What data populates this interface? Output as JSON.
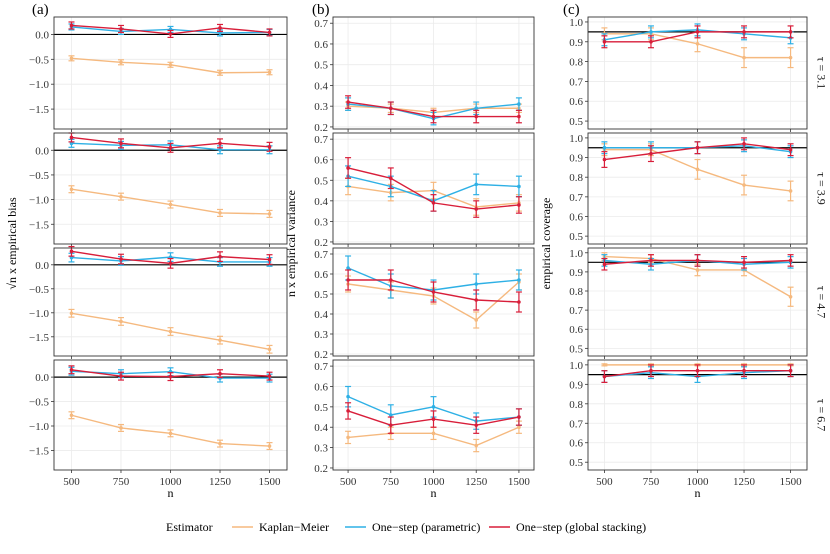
{
  "colors": {
    "km": "#F5B97F",
    "param": "#2EB0E5",
    "stack": "#D81E3A",
    "reference_line": "#000000",
    "panel_border": "#333333",
    "grid": "#EBEBEB",
    "strip_text": "#1A1A1A"
  },
  "column_letters": [
    "(a)",
    "(b)",
    "(c)"
  ],
  "row_strips": [
    "τ = 3.1",
    "τ = 3.9",
    "τ = 4.7",
    "τ = 6.7"
  ],
  "legend": {
    "title": "Estimator",
    "items": [
      {
        "key": "km",
        "label": "Kaplan−Meier"
      },
      {
        "key": "param",
        "label": "One−step (parametric)"
      },
      {
        "key": "stack",
        "label": "One−step (global stacking)"
      }
    ]
  },
  "chart_data": [
    {
      "type": "line",
      "column": "(a)",
      "ylabel": "√n x empirical bias",
      "xlabel": "n",
      "x": [
        500,
        750,
        1000,
        1250,
        1500
      ],
      "ylim": [
        -1.9,
        0.35
      ],
      "yticks": [
        0.0,
        -0.5,
        -1.0,
        -1.5
      ],
      "ytick_labels": [
        "0.0",
        "−0.5",
        "−1.0",
        "−1.5"
      ],
      "reference_line": 0,
      "panels": [
        {
          "tau": "τ = 3.1",
          "series": [
            {
              "name": "Kaplan−Meier",
              "key": "km",
              "values": [
                -0.48,
                -0.56,
                -0.61,
                -0.77,
                -0.76
              ],
              "err": [
                0.05,
                0.05,
                0.05,
                0.05,
                0.05
              ]
            },
            {
              "name": "One−step (parametric)",
              "key": "param",
              "values": [
                0.15,
                0.06,
                0.1,
                0.03,
                0.04
              ],
              "err": [
                0.06,
                0.06,
                0.06,
                0.06,
                0.06
              ]
            },
            {
              "name": "One−step (global stacking)",
              "key": "stack",
              "values": [
                0.18,
                0.11,
                0.01,
                0.13,
                0.04
              ],
              "err": [
                0.07,
                0.07,
                0.07,
                0.07,
                0.07
              ]
            }
          ]
        },
        {
          "tau": "τ = 3.9",
          "series": [
            {
              "name": "Kaplan−Meier",
              "key": "km",
              "values": [
                -0.79,
                -0.94,
                -1.1,
                -1.27,
                -1.29
              ],
              "err": [
                0.07,
                0.07,
                0.07,
                0.07,
                0.07
              ]
            },
            {
              "name": "One−step (parametric)",
              "key": "param",
              "values": [
                0.14,
                0.1,
                0.11,
                0.01,
                0.01
              ],
              "err": [
                0.08,
                0.08,
                0.08,
                0.08,
                0.08
              ]
            },
            {
              "name": "One−step (global stacking)",
              "key": "stack",
              "values": [
                0.26,
                0.14,
                0.05,
                0.14,
                0.07
              ],
              "err": [
                0.09,
                0.09,
                0.09,
                0.09,
                0.09
              ]
            }
          ]
        },
        {
          "tau": "τ = 4.7",
          "series": [
            {
              "name": "Kaplan−Meier",
              "key": "km",
              "values": [
                -1.01,
                -1.18,
                -1.39,
                -1.57,
                -1.76
              ],
              "err": [
                0.08,
                0.08,
                0.08,
                0.08,
                0.08
              ]
            },
            {
              "name": "One−step (parametric)",
              "key": "param",
              "values": [
                0.15,
                0.08,
                0.16,
                0.06,
                0.06
              ],
              "err": [
                0.09,
                0.09,
                0.09,
                0.09,
                0.09
              ]
            },
            {
              "name": "One−step (global stacking)",
              "key": "stack",
              "values": [
                0.28,
                0.12,
                0.03,
                0.17,
                0.11
              ],
              "err": [
                0.1,
                0.1,
                0.1,
                0.1,
                0.1
              ]
            }
          ]
        },
        {
          "tau": "τ = 6.7",
          "series": [
            {
              "name": "Kaplan−Meier",
              "key": "km",
              "values": [
                -0.78,
                -1.04,
                -1.15,
                -1.36,
                -1.41
              ],
              "err": [
                0.07,
                0.07,
                0.07,
                0.07,
                0.07
              ]
            },
            {
              "name": "One−step (parametric)",
              "key": "param",
              "values": [
                0.12,
                0.07,
                0.11,
                -0.02,
                -0.02
              ],
              "err": [
                0.08,
                0.08,
                0.08,
                0.08,
                0.08
              ]
            },
            {
              "name": "One−step (global stacking)",
              "key": "stack",
              "values": [
                0.15,
                0.02,
                0.01,
                0.07,
                0.02
              ],
              "err": [
                0.08,
                0.08,
                0.08,
                0.08,
                0.08
              ]
            }
          ]
        }
      ]
    },
    {
      "type": "line",
      "column": "(b)",
      "ylabel": "n x empirical variance",
      "xlabel": "n",
      "x": [
        500,
        750,
        1000,
        1250,
        1500
      ],
      "ylim": [
        0.19,
        0.73
      ],
      "yticks": [
        0.2,
        0.3,
        0.4,
        0.5,
        0.6,
        0.7
      ],
      "ytick_labels": [
        "0.2",
        "0.3",
        "0.4",
        "0.5",
        "0.6",
        "0.7"
      ],
      "reference_line": null,
      "panels": [
        {
          "tau": "τ = 3.1",
          "series": [
            {
              "name": "Kaplan−Meier",
              "key": "km",
              "values": [
                0.3,
                0.29,
                0.27,
                0.29,
                0.29
              ],
              "err": [
                0.02,
                0.02,
                0.02,
                0.02,
                0.02
              ]
            },
            {
              "name": "One−step (parametric)",
              "key": "param",
              "values": [
                0.31,
                0.29,
                0.24,
                0.29,
                0.31
              ],
              "err": [
                0.03,
                0.03,
                0.03,
                0.03,
                0.03
              ]
            },
            {
              "name": "One−step (global stacking)",
              "key": "stack",
              "values": [
                0.32,
                0.29,
                0.25,
                0.25,
                0.25
              ],
              "err": [
                0.03,
                0.03,
                0.03,
                0.03,
                0.03
              ]
            }
          ]
        },
        {
          "tau": "τ = 3.9",
          "series": [
            {
              "name": "Kaplan−Meier",
              "key": "km",
              "values": [
                0.47,
                0.44,
                0.45,
                0.37,
                0.39
              ],
              "err": [
                0.04,
                0.04,
                0.04,
                0.04,
                0.04
              ]
            },
            {
              "name": "One−step (parametric)",
              "key": "param",
              "values": [
                0.52,
                0.47,
                0.4,
                0.48,
                0.47
              ],
              "err": [
                0.05,
                0.05,
                0.05,
                0.05,
                0.05
              ]
            },
            {
              "name": "One−step (global stacking)",
              "key": "stack",
              "values": [
                0.56,
                0.51,
                0.39,
                0.36,
                0.38
              ],
              "err": [
                0.05,
                0.05,
                0.04,
                0.04,
                0.04
              ]
            }
          ]
        },
        {
          "tau": "τ = 4.7",
          "series": [
            {
              "name": "Kaplan−Meier",
              "key": "km",
              "values": [
                0.55,
                0.52,
                0.49,
                0.37,
                0.56
              ],
              "err": [
                0.04,
                0.04,
                0.04,
                0.04,
                0.04
              ]
            },
            {
              "name": "One−step (parametric)",
              "key": "param",
              "values": [
                0.63,
                0.54,
                0.52,
                0.55,
                0.57
              ],
              "err": [
                0.06,
                0.06,
                0.05,
                0.05,
                0.05
              ]
            },
            {
              "name": "One−step (global stacking)",
              "key": "stack",
              "values": [
                0.57,
                0.57,
                0.51,
                0.47,
                0.46
              ],
              "err": [
                0.05,
                0.05,
                0.05,
                0.05,
                0.05
              ]
            }
          ]
        },
        {
          "tau": "τ = 6.7",
          "series": [
            {
              "name": "Kaplan−Meier",
              "key": "km",
              "values": [
                0.35,
                0.37,
                0.37,
                0.31,
                0.4
              ],
              "err": [
                0.03,
                0.03,
                0.03,
                0.03,
                0.03
              ]
            },
            {
              "name": "One−step (parametric)",
              "key": "param",
              "values": [
                0.55,
                0.46,
                0.5,
                0.43,
                0.45
              ],
              "err": [
                0.05,
                0.05,
                0.05,
                0.04,
                0.04
              ]
            },
            {
              "name": "One−step (global stacking)",
              "key": "stack",
              "values": [
                0.48,
                0.41,
                0.44,
                0.41,
                0.45
              ],
              "err": [
                0.04,
                0.04,
                0.04,
                0.04,
                0.04
              ]
            }
          ]
        }
      ]
    },
    {
      "type": "line",
      "column": "(c)",
      "ylabel": "empirical coverage",
      "xlabel": "n",
      "x": [
        500,
        750,
        1000,
        1250,
        1500
      ],
      "ylim": [
        0.46,
        1.025
      ],
      "yticks": [
        0.5,
        0.6,
        0.7,
        0.8,
        0.9,
        1.0
      ],
      "ytick_labels": [
        "0.5",
        "0.6",
        "0.7",
        "0.8",
        "0.9",
        "1.0"
      ],
      "reference_line": 0.95,
      "panels": [
        {
          "tau": "τ = 3.1",
          "series": [
            {
              "name": "Kaplan−Meier",
              "key": "km",
              "values": [
                0.94,
                0.94,
                0.89,
                0.82,
                0.82
              ],
              "err": [
                0.03,
                0.03,
                0.04,
                0.05,
                0.05
              ]
            },
            {
              "name": "One−step (parametric)",
              "key": "param",
              "values": [
                0.91,
                0.95,
                0.96,
                0.94,
                0.92
              ],
              "err": [
                0.03,
                0.03,
                0.03,
                0.03,
                0.03
              ]
            },
            {
              "name": "One−step (global stacking)",
              "key": "stack",
              "values": [
                0.9,
                0.9,
                0.95,
                0.95,
                0.95
              ],
              "err": [
                0.03,
                0.03,
                0.03,
                0.03,
                0.03
              ]
            }
          ]
        },
        {
          "tau": "τ = 3.9",
          "series": [
            {
              "name": "Kaplan−Meier",
              "key": "km",
              "values": [
                0.94,
                0.94,
                0.84,
                0.76,
                0.73
              ],
              "err": [
                0.03,
                0.03,
                0.05,
                0.05,
                0.05
              ]
            },
            {
              "name": "One−step (parametric)",
              "key": "param",
              "values": [
                0.95,
                0.95,
                0.95,
                0.96,
                0.93
              ],
              "err": [
                0.03,
                0.03,
                0.03,
                0.03,
                0.03
              ]
            },
            {
              "name": "One−step (global stacking)",
              "key": "stack",
              "values": [
                0.89,
                0.92,
                0.95,
                0.97,
                0.94
              ],
              "err": [
                0.04,
                0.04,
                0.03,
                0.03,
                0.03
              ]
            }
          ]
        },
        {
          "tau": "τ = 4.7",
          "series": [
            {
              "name": "Kaplan−Meier",
              "key": "km",
              "values": [
                0.98,
                0.97,
                0.91,
                0.91,
                0.77
              ],
              "err": [
                0.02,
                0.02,
                0.03,
                0.03,
                0.05
              ]
            },
            {
              "name": "One−step (parametric)",
              "key": "param",
              "values": [
                0.96,
                0.94,
                0.96,
                0.94,
                0.95
              ],
              "err": [
                0.03,
                0.03,
                0.03,
                0.03,
                0.03
              ]
            },
            {
              "name": "One−step (global stacking)",
              "key": "stack",
              "values": [
                0.94,
                0.96,
                0.96,
                0.95,
                0.96
              ],
              "err": [
                0.03,
                0.03,
                0.03,
                0.03,
                0.03
              ]
            }
          ]
        },
        {
          "tau": "τ = 6.7",
          "series": [
            {
              "name": "Kaplan−Meier",
              "key": "km",
              "values": [
                1.0,
                1.0,
                1.0,
                1.0,
                1.0
              ],
              "err": [
                0.005,
                0.005,
                0.005,
                0.005,
                0.005
              ]
            },
            {
              "name": "One−step (parametric)",
              "key": "param",
              "values": [
                0.94,
                0.96,
                0.94,
                0.96,
                0.97
              ],
              "err": [
                0.03,
                0.03,
                0.03,
                0.03,
                0.03
              ]
            },
            {
              "name": "One−step (global stacking)",
              "key": "stack",
              "values": [
                0.94,
                0.97,
                0.97,
                0.97,
                0.97
              ],
              "err": [
                0.03,
                0.03,
                0.03,
                0.03,
                0.03
              ]
            }
          ]
        }
      ]
    }
  ]
}
